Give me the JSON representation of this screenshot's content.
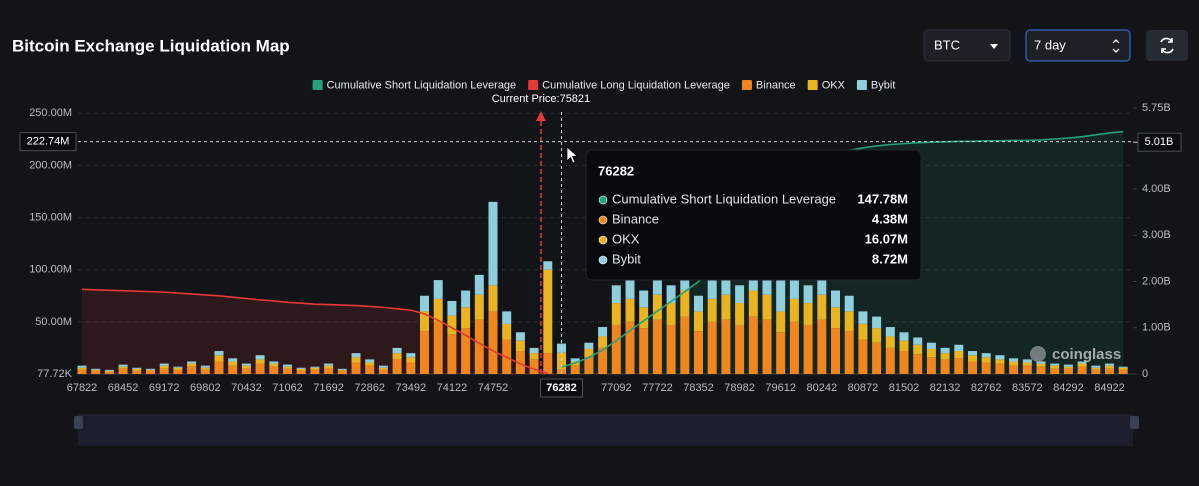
{
  "chart_data": {
    "type": "bar",
    "title": "Bitcoin Exchange Liquidation Map",
    "annotation": "Current Price:75821",
    "watermark": "coinglass",
    "categories": [
      "67822",
      null,
      null,
      "68452",
      null,
      null,
      "69172",
      null,
      null,
      "69802",
      null,
      null,
      "70432",
      null,
      null,
      "71062",
      null,
      null,
      "71692",
      null,
      null,
      "72862",
      null,
      null,
      "73492",
      null,
      null,
      "74122",
      null,
      null,
      "74752",
      null,
      null,
      null,
      null,
      "76282",
      null,
      null,
      null,
      "77092",
      null,
      null,
      "77722",
      null,
      null,
      "78352",
      null,
      null,
      "78982",
      null,
      null,
      "79612",
      null,
      null,
      "80242",
      null,
      null,
      "80872",
      null,
      null,
      "81502",
      null,
      null,
      "82132",
      null,
      null,
      "82762",
      null,
      null,
      "83572",
      null,
      null,
      "84292",
      null,
      null,
      "84922",
      null
    ],
    "series": [
      {
        "name": "Cumulative Short Liquidation Leverage",
        "type": "line",
        "axis": "y2",
        "color": "#26a17b",
        "values": [
          null,
          null,
          null,
          null,
          null,
          null,
          null,
          null,
          null,
          null,
          null,
          null,
          null,
          null,
          null,
          null,
          null,
          null,
          null,
          null,
          null,
          null,
          null,
          null,
          null,
          null,
          null,
          null,
          null,
          null,
          null,
          null,
          null,
          null,
          null,
          147780000.0,
          240000000.0,
          360000000.0,
          520000000.0,
          720000000.0,
          940000000.0,
          1150000000.0,
          1360000000.0,
          1570000000.0,
          1780000000.0,
          2000000000.0,
          2300000000.0,
          2620000000.0,
          2980000000.0,
          3320000000.0,
          3650000000.0,
          3950000000.0,
          4220000000.0,
          4450000000.0,
          4620000000.0,
          4740000000.0,
          4830000000.0,
          4890000000.0,
          4930000000.0,
          4960000000.0,
          4980000000.0,
          5000000000.0,
          5010000000.0,
          5020000000.0,
          5030000000.0,
          5030000000.0,
          5040000000.0,
          5040000000.0,
          5050000000.0,
          5050000000.0,
          5060000000.0,
          5080000000.0,
          5100000000.0,
          5130000000.0,
          5170000000.0,
          5210000000.0,
          5240000000.0
        ]
      },
      {
        "name": "Cumulative Long Liquidation Leverage",
        "type": "line",
        "axis": "y2",
        "color": "#e53935",
        "values": [
          1830000000.0,
          1820000000.0,
          1810000000.0,
          1800000000.0,
          1790000000.0,
          1780000000.0,
          1770000000.0,
          1750000000.0,
          1730000000.0,
          1710000000.0,
          1690000000.0,
          1660000000.0,
          1630000000.0,
          1600000000.0,
          1580000000.0,
          1550000000.0,
          1530000000.0,
          1510000000.0,
          1500000000.0,
          1490000000.0,
          1480000000.0,
          1460000000.0,
          1440000000.0,
          1410000000.0,
          1380000000.0,
          1300000000.0,
          1160000000.0,
          1000000000.0,
          840000000.0,
          660000000.0,
          500000000.0,
          360000000.0,
          220000000.0,
          100000000.0,
          10000000.0,
          null,
          null,
          null,
          null,
          null,
          null,
          null,
          null,
          null,
          null,
          null,
          null,
          null,
          null,
          null,
          null,
          null,
          null,
          null,
          null,
          null,
          null,
          null,
          null,
          null,
          null,
          null,
          null,
          null,
          null,
          null,
          null,
          null,
          null,
          null,
          null,
          null,
          null,
          null,
          null,
          null,
          null
        ]
      },
      {
        "name": "Binance",
        "color": "#f0861d",
        "values": [
          4000000.0,
          3000000.0,
          2000000.0,
          5000000.0,
          3000000.0,
          3000000.0,
          5000000.0,
          4000000.0,
          7000000.0,
          4000000.0,
          12000000.0,
          8000000.0,
          5000000.0,
          10000000.0,
          7000000.0,
          5000000.0,
          3000000.0,
          4000000.0,
          5000000.0,
          3000000.0,
          11000000.0,
          8000000.0,
          4000000.0,
          14000000.0,
          11000000.0,
          41000000.0,
          50000000.0,
          38000000.0,
          44000000.0,
          52000000.0,
          60000000.0,
          33000000.0,
          22000000.0,
          14000000.0,
          20000000.0,
          4380000.0,
          8000000.0,
          16000000.0,
          25000000.0,
          47000000.0,
          50000000.0,
          44000000.0,
          52000000.0,
          47000000.0,
          55000000.0,
          41000000.0,
          50000000.0,
          52000000.0,
          47000000.0,
          55000000.0,
          52000000.0,
          40000000.0,
          50000000.0,
          47000000.0,
          52000000.0,
          44000000.0,
          41000000.0,
          33000000.0,
          30000000.0,
          25000000.0,
          22000000.0,
          19000000.0,
          16000000.0,
          14000000.0,
          15000000.0,
          12000000.0,
          11000000.0,
          10000000.0,
          8000000.0,
          8000000.0,
          7000000.0,
          5000000.0,
          5000000.0,
          7000000.0,
          4000000.0,
          5000000.0,
          4000000.0
        ]
      },
      {
        "name": "OKX",
        "color": "#e9b41f",
        "values": [
          2000000.0,
          1000000.0,
          1000000.0,
          2000000.0,
          2000000.0,
          1000000.0,
          3000000.0,
          2000000.0,
          3000000.0,
          2000000.0,
          6000000.0,
          4000000.0,
          3000000.0,
          4000000.0,
          3000000.0,
          2000000.0,
          2000000.0,
          2000000.0,
          3000000.0,
          1000000.0,
          5000000.0,
          3000000.0,
          2000000.0,
          6000000.0,
          5000000.0,
          19000000.0,
          22000000.0,
          18000000.0,
          20000000.0,
          24000000.0,
          25000000.0,
          15000000.0,
          10000000.0,
          6000000.0,
          80000000.0,
          16070000.0,
          4000000.0,
          8000000.0,
          11000000.0,
          21000000.0,
          22000000.0,
          20000000.0,
          24000000.0,
          21000000.0,
          25000000.0,
          19000000.0,
          22000000.0,
          24000000.0,
          21000000.0,
          25000000.0,
          24000000.0,
          20000000.0,
          22000000.0,
          21000000.0,
          24000000.0,
          20000000.0,
          19000000.0,
          15000000.0,
          14000000.0,
          11000000.0,
          10000000.0,
          9000000.0,
          8000000.0,
          6000000.0,
          7000000.0,
          6000000.0,
          5000000.0,
          4000000.0,
          4000000.0,
          3000000.0,
          3000000.0,
          3000000.0,
          2000000.0,
          3000000.0,
          2000000.0,
          3000000.0,
          2000000.0
        ]
      },
      {
        "name": "Bybit",
        "color": "#8fcfdc",
        "values": [
          2000000.0,
          1000000.0,
          1000000.0,
          2000000.0,
          1000000.0,
          1000000.0,
          2000000.0,
          1000000.0,
          2000000.0,
          2000000.0,
          4000000.0,
          3000000.0,
          2000000.0,
          4000000.0,
          2000000.0,
          2000000.0,
          1000000.0,
          1000000.0,
          2000000.0,
          1000000.0,
          4000000.0,
          3000000.0,
          2000000.0,
          5000000.0,
          4000000.0,
          15000000.0,
          18000000.0,
          14000000.0,
          16000000.0,
          19000000.0,
          80000000.0,
          12000000.0,
          8000000.0,
          5000000.0,
          8000000.0,
          8720000.0,
          3000000.0,
          6000000.0,
          9000000.0,
          17000000.0,
          18000000.0,
          16000000.0,
          19000000.0,
          17000000.0,
          20000000.0,
          15000000.0,
          18000000.0,
          19000000.0,
          17000000.0,
          20000000.0,
          19000000.0,
          75000000.0,
          18000000.0,
          17000000.0,
          19000000.0,
          16000000.0,
          15000000.0,
          12000000.0,
          11000000.0,
          9000000.0,
          8000000.0,
          7000000.0,
          6000000.0,
          5000000.0,
          6000000.0,
          4000000.0,
          4000000.0,
          4000000.0,
          3000000.0,
          3000000.0,
          2000000.0,
          2000000.0,
          2000000.0,
          2000000.0,
          2000000.0,
          2000000.0,
          1000000.0
        ]
      }
    ],
    "ylim": [
      77720,
      255000000
    ],
    "yticks": [
      {
        "value": 77720,
        "label": "77.72K"
      },
      {
        "value": 50000000,
        "label": "50.00M"
      },
      {
        "value": 100000000,
        "label": "100.00M"
      },
      {
        "value": 150000000,
        "label": "150.00M"
      },
      {
        "value": 200000000,
        "label": "200.00M"
      },
      {
        "value": 250000000,
        "label": "250.00M"
      }
    ],
    "y2lim": [
      0,
      5750000000
    ],
    "y2ticks": [
      0,
      {
        "value": 1000000000,
        "label": "1.00B"
      },
      {
        "value": 2000000000,
        "label": "2.00B"
      },
      {
        "value": 3000000000,
        "label": "3.00B"
      },
      {
        "value": 4000000000,
        "label": "4.00B"
      },
      {
        "value": 5750000000,
        "label": "5.75B"
      }
    ],
    "grid": true,
    "crosshair": {
      "y": {
        "value": 222740000,
        "label": "222.74M"
      },
      "y2": {
        "value": 5010000000,
        "label": "5.01B"
      }
    },
    "tooltip": {
      "values": [
        "147.78M",
        "4.38M",
        "16.07M",
        "8.72M"
      ]
    }
  },
  "controls": {
    "coin": "BTC",
    "range": "7 day"
  }
}
